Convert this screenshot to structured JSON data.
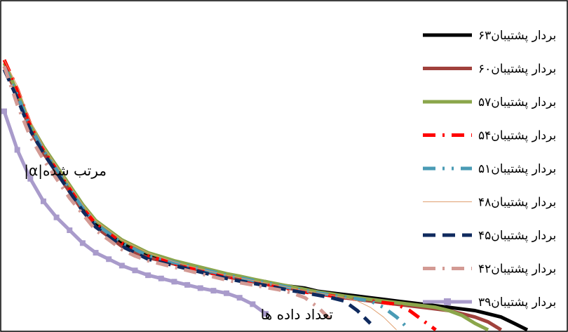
{
  "chart_data": {
    "type": "line",
    "xlabel": "تعداد داده ها",
    "ylabel": "|α|مرتب شده",
    "grid": false,
    "legend_position": "right",
    "x": [
      0,
      1,
      2,
      3,
      4,
      5,
      6,
      7,
      8,
      9,
      10,
      11,
      12,
      13,
      14,
      15,
      16,
      17,
      18,
      19,
      20,
      21,
      22,
      23,
      24,
      25,
      26,
      27,
      28,
      29,
      30,
      31,
      32,
      33,
      34,
      35,
      36,
      37,
      38,
      39,
      40
    ],
    "series": [
      {
        "name": "۶۳بردار پشتیبان",
        "color": "#000000",
        "style": "solid",
        "width": 5,
        "values": [
          0.82,
          0.74,
          0.63,
          0.56,
          0.5,
          0.44,
          0.38,
          0.33,
          0.3,
          0.27,
          0.25,
          0.23,
          0.22,
          0.21,
          0.2,
          0.19,
          0.18,
          0.17,
          0.16,
          0.155,
          0.15,
          0.14,
          0.135,
          0.13,
          0.12,
          0.115,
          0.11,
          0.105,
          0.1,
          0.095,
          0.09,
          0.085,
          0.08,
          0.075,
          0.07,
          0.065,
          0.06,
          0.05,
          0.04,
          0.02,
          0.0
        ]
      },
      {
        "name": "۶۰بردار پشتیبان",
        "color": "#A0413C",
        "style": "solid",
        "width": 5,
        "values": [
          0.82,
          0.73,
          0.62,
          0.55,
          0.49,
          0.43,
          0.37,
          0.32,
          0.29,
          0.26,
          0.24,
          0.225,
          0.215,
          0.205,
          0.195,
          0.185,
          0.175,
          0.165,
          0.158,
          0.15,
          0.142,
          0.135,
          0.128,
          0.12,
          0.113,
          0.108,
          0.1,
          0.095,
          0.09,
          0.085,
          0.08,
          0.075,
          0.07,
          0.065,
          0.06,
          0.05,
          0.04,
          0.025,
          0.0,
          null,
          null
        ]
      },
      {
        "name": "۵۷بردار پشتیبان",
        "color": "#8BA64B",
        "style": "solid",
        "width": 5,
        "values": [
          0.83,
          0.74,
          0.64,
          0.57,
          0.51,
          0.45,
          0.39,
          0.34,
          0.31,
          0.28,
          0.26,
          0.24,
          0.228,
          0.215,
          0.205,
          0.195,
          0.185,
          0.175,
          0.167,
          0.158,
          0.15,
          0.142,
          0.134,
          0.126,
          0.118,
          0.112,
          0.105,
          0.1,
          0.095,
          0.09,
          0.085,
          0.08,
          0.075,
          0.07,
          0.06,
          0.045,
          0.02,
          0.0,
          null,
          null,
          null
        ]
      },
      {
        "name": "۵۴بردار پشتیبان",
        "color": "#FF0000",
        "style": "dashdot",
        "width": 5,
        "values": [
          0.84,
          0.75,
          0.64,
          0.56,
          0.5,
          0.44,
          0.38,
          0.33,
          0.3,
          0.27,
          0.25,
          0.23,
          0.218,
          0.205,
          0.195,
          0.185,
          0.175,
          0.166,
          0.158,
          0.15,
          0.142,
          0.134,
          0.126,
          0.118,
          0.112,
          0.106,
          0.1,
          0.095,
          0.09,
          0.085,
          0.08,
          0.06,
          0.03,
          0.0,
          null,
          null,
          null,
          null,
          null,
          null,
          null
        ]
      },
      {
        "name": "۵۱بردار پشتیبان",
        "color": "#4A9BB5",
        "style": "dashdotdot",
        "width": 5,
        "values": [
          0.82,
          0.73,
          0.63,
          0.56,
          0.5,
          0.44,
          0.38,
          0.33,
          0.3,
          0.27,
          0.25,
          0.23,
          0.22,
          0.21,
          0.2,
          0.19,
          0.18,
          0.17,
          0.162,
          0.154,
          0.146,
          0.138,
          0.13,
          0.122,
          0.115,
          0.108,
          0.102,
          0.096,
          0.09,
          0.07,
          0.04,
          0.0,
          null,
          null,
          null,
          null,
          null,
          null,
          null,
          null,
          null
        ]
      },
      {
        "name": "۴۸بردار پشتیبان",
        "color": "#E0A070",
        "style": "thin",
        "width": 1,
        "values": [
          0.84,
          0.76,
          0.65,
          0.57,
          0.51,
          0.45,
          0.39,
          0.34,
          0.31,
          0.28,
          0.26,
          0.24,
          0.225,
          0.212,
          0.2,
          0.19,
          0.18,
          0.17,
          0.162,
          0.154,
          0.146,
          0.138,
          0.13,
          0.122,
          0.115,
          0.108,
          0.1,
          0.09,
          0.07,
          0.04,
          0.0,
          null,
          null,
          null,
          null,
          null,
          null,
          null,
          null,
          null,
          null
        ]
      },
      {
        "name": "۴۵بردار پشتیبان",
        "color": "#0F2A5E",
        "style": "dashed",
        "width": 5,
        "values": [
          0.81,
          0.72,
          0.62,
          0.55,
          0.49,
          0.43,
          0.37,
          0.32,
          0.29,
          0.26,
          0.24,
          0.22,
          0.21,
          0.2,
          0.19,
          0.18,
          0.17,
          0.16,
          0.152,
          0.145,
          0.138,
          0.13,
          0.122,
          0.115,
          0.108,
          0.1,
          0.09,
          0.06,
          0.02,
          null,
          null,
          null,
          null,
          null,
          null,
          null,
          null,
          null,
          null,
          null,
          null
        ]
      },
      {
        "name": "۴۲بردار پشتیبان",
        "color": "#D39A94",
        "style": "dashdot",
        "width": 5,
        "values": [
          0.82,
          0.7,
          0.6,
          0.53,
          0.47,
          0.41,
          0.36,
          0.31,
          0.28,
          0.25,
          0.23,
          0.215,
          0.205,
          0.195,
          0.185,
          0.175,
          0.165,
          0.155,
          0.147,
          0.14,
          0.132,
          0.125,
          0.115,
          0.1,
          0.07,
          0.03,
          null,
          null,
          null,
          null,
          null,
          null,
          null,
          null,
          null,
          null,
          null,
          null,
          null,
          null,
          null
        ]
      },
      {
        "name": "۳۹بردار پشتیبان",
        "color": "#A99BCB",
        "style": "marker",
        "width": 5,
        "values": [
          0.68,
          0.56,
          0.47,
          0.4,
          0.35,
          0.31,
          0.27,
          0.24,
          0.22,
          0.2,
          0.185,
          0.17,
          0.16,
          0.15,
          0.14,
          0.13,
          0.122,
          0.114,
          0.1,
          0.08,
          0.05,
          null,
          null,
          null,
          null,
          null,
          null,
          null,
          null,
          null,
          null,
          null,
          null,
          null,
          null,
          null,
          null,
          null,
          null,
          null,
          null
        ]
      }
    ]
  }
}
